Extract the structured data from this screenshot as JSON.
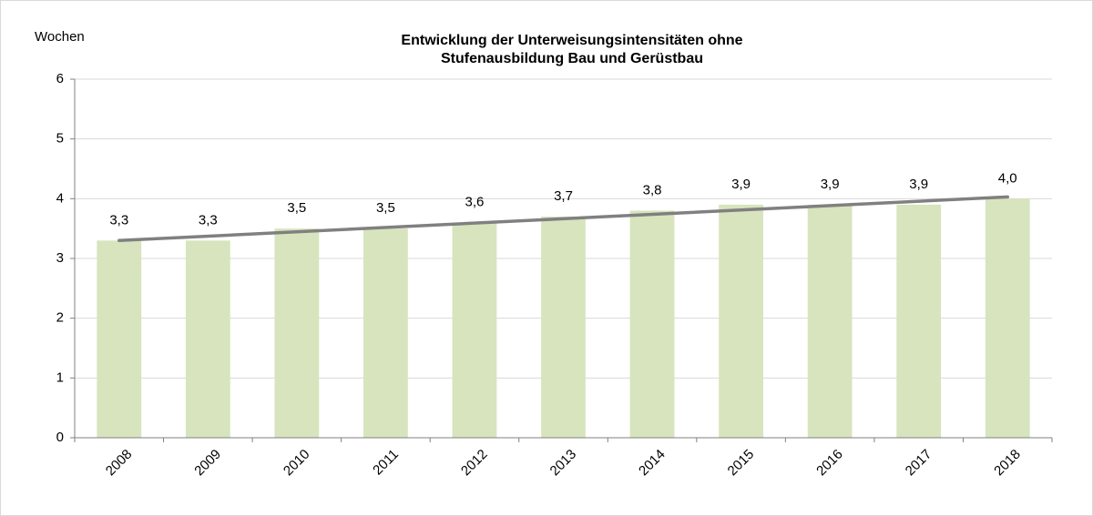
{
  "chart_data": {
    "type": "bar",
    "title": "Entwicklung der Unterweisungsintensitäten ohne",
    "subtitle": "Stufenausbildung Bau und Gerüstbau",
    "y_label": "Wochen",
    "categories": [
      "2008",
      "2009",
      "2010",
      "2011",
      "2012",
      "2013",
      "2014",
      "2015",
      "2016",
      "2017",
      "2018"
    ],
    "values": [
      3.3,
      3.3,
      3.5,
      3.5,
      3.6,
      3.7,
      3.8,
      3.9,
      3.9,
      3.9,
      4.0
    ],
    "value_labels": [
      "3,3",
      "3,3",
      "3,5",
      "3,5",
      "3,6",
      "3,7",
      "3,8",
      "3,9",
      "3,9",
      "3,9",
      "4,0"
    ],
    "color": "#d7e4bd",
    "trend_line": {
      "color": "#808080",
      "values": [
        3.3,
        4.03
      ]
    },
    "ylim": [
      0,
      6
    ],
    "yticks": [
      0,
      1,
      2,
      3,
      4,
      5,
      6
    ],
    "grid": true
  }
}
